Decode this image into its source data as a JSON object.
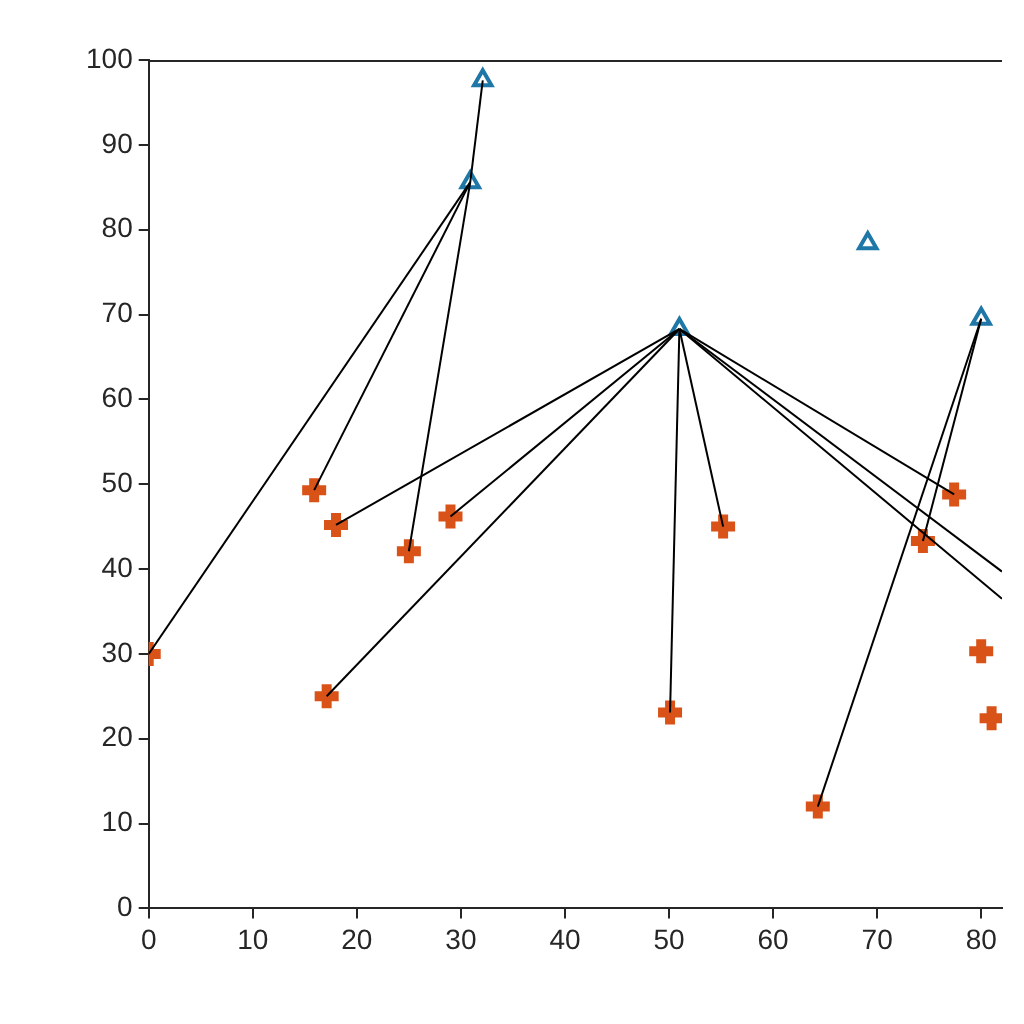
{
  "chart_data": {
    "type": "scatter",
    "xlim": [
      0,
      82
    ],
    "ylim": [
      0,
      100
    ],
    "xticks": [
      0,
      10,
      20,
      30,
      40,
      50,
      60,
      70,
      80
    ],
    "yticks": [
      0,
      10,
      20,
      30,
      40,
      50,
      60,
      70,
      80,
      90,
      100
    ],
    "grid": false,
    "legend": false,
    "series": [
      {
        "type": "line",
        "color": "#000000",
        "marker": "none",
        "x": [
          32.1,
          30.9
        ],
        "values": [
          97.6,
          85.6
        ]
      },
      {
        "type": "line",
        "color": "#000000",
        "marker": "none",
        "x": [
          30.9,
          0
        ],
        "values": [
          85.6,
          30
        ]
      },
      {
        "type": "line",
        "color": "#000000",
        "marker": "none",
        "x": [
          30.9,
          15.9
        ],
        "values": [
          85.6,
          49.3
        ]
      },
      {
        "type": "line",
        "color": "#000000",
        "marker": "none",
        "x": [
          30.9,
          25
        ],
        "values": [
          85.6,
          42.1
        ]
      },
      {
        "type": "line",
        "color": "#000000",
        "marker": "none",
        "x": [
          51,
          18
        ],
        "values": [
          68.3,
          45.2
        ]
      },
      {
        "type": "line",
        "color": "#000000",
        "marker": "none",
        "x": [
          51,
          29
        ],
        "values": [
          68.3,
          46.2
        ]
      },
      {
        "type": "line",
        "color": "#000000",
        "marker": "none",
        "x": [
          51,
          17.1
        ],
        "values": [
          68.3,
          25
        ]
      },
      {
        "type": "line",
        "color": "#000000",
        "marker": "none",
        "x": [
          51,
          50.1
        ],
        "values": [
          68.3,
          23.1
        ]
      },
      {
        "type": "line",
        "color": "#000000",
        "marker": "none",
        "x": [
          51,
          55.2
        ],
        "values": [
          68.3,
          45
        ]
      },
      {
        "type": "line",
        "color": "#000000",
        "marker": "none",
        "x": [
          51,
          77.4
        ],
        "values": [
          68.3,
          48.8
        ]
      },
      {
        "type": "line",
        "color": "#000000",
        "marker": "none",
        "x": [
          51,
          82
        ],
        "values": [
          68.3,
          39.7
        ]
      },
      {
        "type": "line",
        "color": "#000000",
        "marker": "none",
        "x": [
          51,
          82
        ],
        "values": [
          68.3,
          36.5
        ]
      },
      {
        "type": "line",
        "color": "#000000",
        "marker": "none",
        "x": [
          80,
          64.3
        ],
        "values": [
          69.5,
          12
        ]
      },
      {
        "type": "line",
        "color": "#000000",
        "marker": "none",
        "x": [
          80,
          74.4
        ],
        "values": [
          69.5,
          43.3
        ]
      },
      {
        "type": "scatter",
        "color": "#1f77a8",
        "marker": "triangle",
        "x": [
          32.1,
          30.9,
          51,
          69.1,
          80
        ],
        "values": [
          97.6,
          85.6,
          68.3,
          78.4,
          69.5
        ]
      },
      {
        "type": "scatter",
        "color": "#d95319",
        "marker": "cross",
        "x": [
          0,
          15.9,
          18,
          25,
          29,
          17.1,
          50.1,
          55.2,
          64.3,
          74.4,
          77.4,
          80,
          81
        ],
        "values": [
          30,
          49.3,
          45.2,
          42.1,
          46.2,
          25,
          23.1,
          45,
          12,
          43.3,
          48.8,
          30.3,
          22.4
        ]
      }
    ]
  }
}
